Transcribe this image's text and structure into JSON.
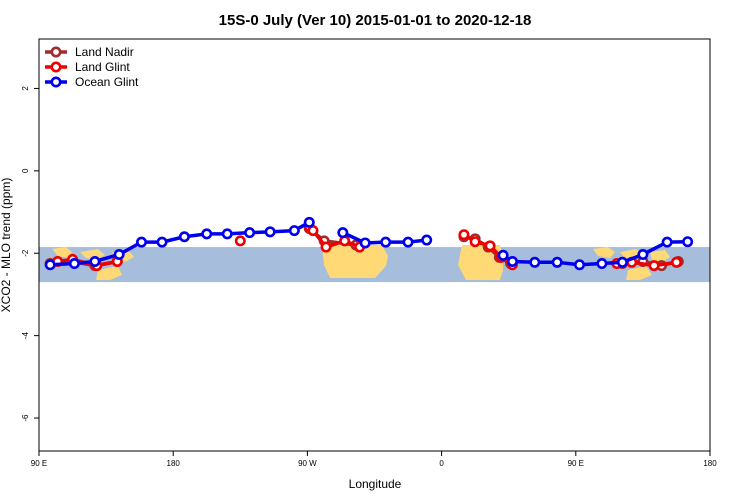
{
  "chart_data": {
    "type": "line",
    "title": "15S-0 July (Ver 10)   2015-01-01 to 2020-12-18",
    "xlabel": "Longitude",
    "ylabel": "XCO2 - MLO trend (ppm)",
    "xlim": [
      90,
      450
    ],
    "ylim": [
      -6.8,
      3.2
    ],
    "x_ticks": [
      {
        "value": 90,
        "label": "90 E"
      },
      {
        "value": 162,
        "label": "180"
      },
      {
        "value": 234,
        "label": "90 W"
      },
      {
        "value": 306,
        "label": "0"
      },
      {
        "value": 378,
        "label": "90 E"
      },
      {
        "value": 450,
        "label": "180"
      }
    ],
    "y_ticks": [
      {
        "value": 2,
        "label": "2"
      },
      {
        "value": 0,
        "label": "0"
      },
      {
        "value": -2,
        "label": "-2"
      },
      {
        "value": -4,
        "label": "-4"
      },
      {
        "value": -6,
        "label": "-6"
      }
    ],
    "map_band": {
      "lat_range": "15S-0",
      "y_top": -1.85,
      "y_bottom": -2.7,
      "ocean_color": "#a6bddb",
      "land_color": "#fed976"
    },
    "legend": {
      "position": "top-left",
      "entries": [
        "Land Nadir",
        "Land Glint",
        "Ocean Glint"
      ]
    },
    "series": [
      {
        "name": "Land Nadir",
        "color": "#a52a2a",
        "segments": [
          [
            [
              96,
              -2.25
            ],
            [
              108,
              -2.2
            ],
            [
              120,
              -2.3
            ],
            [
              132,
              -2.2
            ]
          ],
          [
            [
              235,
              -1.4
            ],
            [
              243,
              -1.7
            ],
            [
              260,
              -1.8
            ]
          ],
          [
            [
              318,
              -1.6
            ],
            [
              324,
              -1.65
            ],
            [
              331,
              -1.85
            ],
            [
              337,
              -2.1
            ],
            [
              343,
              -2.25
            ]
          ],
          [
            [
              403,
              -2.25
            ],
            [
              414,
              -2.2
            ],
            [
              424,
              -2.3
            ],
            [
              433,
              -2.2
            ]
          ]
        ]
      },
      {
        "name": "Land Glint",
        "color": "#ee0000",
        "segments": [
          [
            [
              100,
              -2.2
            ],
            [
              108,
              -2.15
            ],
            [
              121,
              -2.3
            ],
            [
              132,
              -2.2
            ]
          ],
          [
            [
              198,
              -1.7
            ]
          ],
          [
            [
              235,
              -1.35
            ],
            [
              237,
              -1.45
            ],
            [
              244,
              -1.85
            ],
            [
              254,
              -1.7
            ],
            [
              262,
              -1.85
            ]
          ],
          [
            [
              318,
              -1.55
            ],
            [
              324,
              -1.72
            ],
            [
              332,
              -1.82
            ],
            [
              338,
              -2.1
            ],
            [
              344,
              -2.28
            ]
          ],
          [
            [
              400,
              -2.25
            ],
            [
              408,
              -2.22
            ],
            [
              420,
              -2.3
            ],
            [
              432,
              -2.22
            ]
          ]
        ]
      },
      {
        "name": "Ocean Glint",
        "color": "#0000ee",
        "segments": [
          [
            [
              96,
              -2.28
            ],
            [
              109,
              -2.25
            ],
            [
              120,
              -2.2
            ],
            [
              133,
              -2.03
            ],
            [
              145,
              -1.73
            ],
            [
              156,
              -1.73
            ],
            [
              168,
              -1.6
            ],
            [
              180,
              -1.53
            ],
            [
              191,
              -1.53
            ],
            [
              203,
              -1.5
            ],
            [
              214,
              -1.48
            ],
            [
              227,
              -1.45
            ],
            [
              235,
              -1.25
            ]
          ],
          [
            [
              253,
              -1.5
            ],
            [
              265,
              -1.75
            ],
            [
              276,
              -1.73
            ],
            [
              288,
              -1.73
            ],
            [
              298,
              -1.68
            ]
          ],
          [
            [
              339,
              -2.05
            ],
            [
              344,
              -2.2
            ],
            [
              356,
              -2.22
            ],
            [
              368,
              -2.22
            ],
            [
              380,
              -2.28
            ],
            [
              392,
              -2.25
            ],
            [
              403,
              -2.22
            ],
            [
              414,
              -2.03
            ],
            [
              427,
              -1.73
            ],
            [
              438,
              -1.72
            ]
          ]
        ]
      }
    ]
  }
}
